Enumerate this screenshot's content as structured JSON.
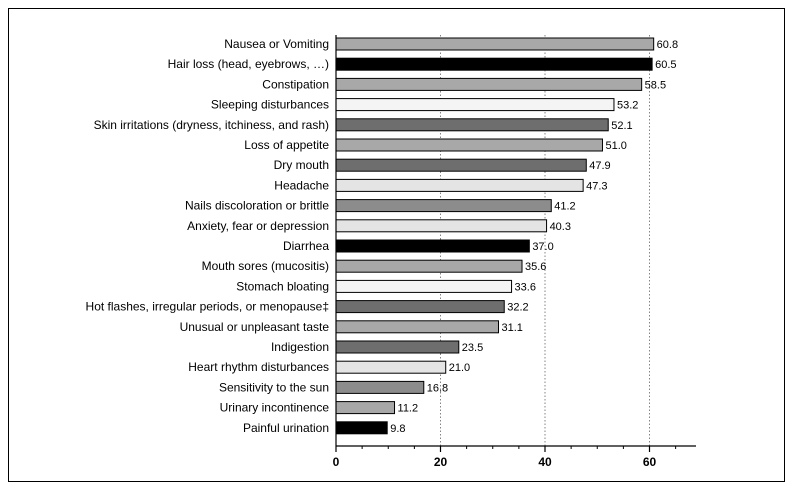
{
  "chart_data": {
    "type": "bar",
    "orientation": "horizontal",
    "title": "",
    "xlabel": "",
    "ylabel": "",
    "xlim": [
      0,
      68
    ],
    "xticks": [
      0,
      20,
      40,
      60
    ],
    "grid": "vertical dotted",
    "categories": [
      "Nausea or Vomiting",
      "Hair loss (head, eyebrows, …)",
      "Constipation",
      "Sleeping disturbances",
      "Skin irritations (dryness, itchiness, and rash)",
      "Loss of appetite",
      "Dry mouth",
      "Headache",
      "Nails discoloration or brittle",
      "Anxiety, fear or depression",
      "Diarrhea",
      "Mouth sores (mucositis)",
      "Stomach bloating",
      "Hot flashes, irregular periods, or menopause‡",
      "Unusual or unpleasant taste",
      "Indigestion",
      "Heart rhythm disturbances",
      "Sensitivity to the sun",
      "Urinary incontinence",
      "Painful urination"
    ],
    "values": [
      60.8,
      60.5,
      58.5,
      53.2,
      52.1,
      51.0,
      47.9,
      47.3,
      41.2,
      40.3,
      37.0,
      35.6,
      33.6,
      32.2,
      31.1,
      23.5,
      21.0,
      16.8,
      11.2,
      9.8
    ],
    "value_labels": [
      "60.8",
      "60.5",
      "58.5",
      "53.2",
      "52.1",
      "51.0",
      "47.9",
      "47.3",
      "41.2",
      "40.3",
      "37.0",
      "35.6",
      "33.6",
      "32.2",
      "31.1",
      "23.5",
      "21.0",
      "16.8",
      "11.2",
      "9.8"
    ],
    "bar_colors": [
      "#a8a8a8",
      "#000000",
      "#a8a8a8",
      "#f4f4f4",
      "#6e6e6e",
      "#a8a8a8",
      "#6e6e6e",
      "#e4e4e4",
      "#8c8c8c",
      "#e4e4e4",
      "#000000",
      "#a8a8a8",
      "#f4f4f4",
      "#6e6e6e",
      "#a8a8a8",
      "#6e6e6e",
      "#e4e4e4",
      "#8c8c8c",
      "#a8a8a8",
      "#000000"
    ]
  }
}
